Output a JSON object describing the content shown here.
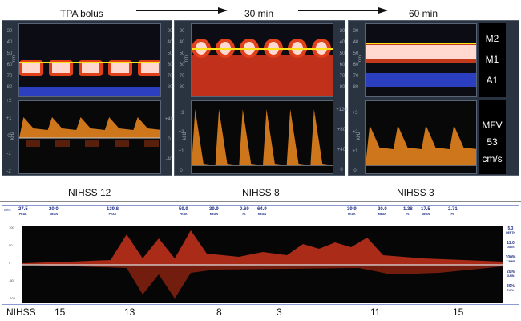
{
  "timeline": {
    "start": "TPA bolus",
    "t1": "30 min",
    "t2": "60 min"
  },
  "panels": [
    {
      "mm_ticks": [
        "30",
        "40",
        "50",
        "60",
        "70",
        "80"
      ],
      "depth_unit": "mm",
      "freq_unit": "kHz",
      "khz_ticks": [
        "+2",
        "+1",
        "0",
        "-1",
        "-2"
      ],
      "vel_ticks": [
        "+40",
        "0",
        "-40"
      ],
      "nihss": "NIHSS 12"
    },
    {
      "mm_ticks": [
        "30",
        "40",
        "50",
        "60",
        "70",
        "80"
      ],
      "depth_unit": "mm",
      "freq_unit": "kHz",
      "khz_ticks": [
        "+3",
        "+2",
        "+1",
        "0"
      ],
      "vel_ticks": [
        "+120",
        "+80",
        "+40",
        "0"
      ],
      "nihss": "NIHSS 8"
    },
    {
      "mm_ticks": [
        "30",
        "40",
        "50",
        "60",
        "70",
        "80"
      ],
      "depth_unit": "mm",
      "freq_unit": "kHz",
      "khz_ticks": [
        "+3",
        "+2",
        "+1",
        "0"
      ],
      "vel_ticks": [
        "+120",
        "+80",
        "+40",
        "0"
      ],
      "nihss": "NIHSS 3",
      "vessels": [
        "M2",
        "M1",
        "A1"
      ],
      "mfv": {
        "label": "MFV",
        "value": "53",
        "unit": "cm/s"
      }
    }
  ],
  "strip": {
    "unit": "cm/s",
    "header": [
      {
        "v": "27.5",
        "k": "PEAK"
      },
      {
        "v": "20.0",
        "k": "MEAN"
      },
      {
        "v": "139.8",
        "k": "PEAK"
      },
      {
        "v": "59.9",
        "k": "PEAK"
      },
      {
        "v": "39.9",
        "k": "MEAN"
      },
      {
        "v": "0.69",
        "k": "P.I."
      },
      {
        "v": "64.9",
        "k": "MEAN"
      },
      {
        "v": "39.9",
        "k": "PEAK"
      },
      {
        "v": "20.0",
        "k": "MEAN"
      },
      {
        "v": "1.38",
        "k": "P.I."
      },
      {
        "v": "17.5",
        "k": "MEAN"
      },
      {
        "v": "2.71",
        "k": "P.I."
      }
    ],
    "right": [
      {
        "v": "5.3",
        "k": "DEPTH"
      },
      {
        "v": "11.0",
        "k": "GATE"
      },
      {
        "v": "100%",
        "k": "T PWR"
      },
      {
        "v": "20%",
        "k": "GAIN"
      },
      {
        "v": "30%",
        "k": "SVOL"
      }
    ],
    "y_ticks": [
      "100",
      "50",
      "0",
      "-50",
      "-100"
    ]
  },
  "nihss_row": {
    "label": "NIHSS",
    "scores": [
      "15",
      "13",
      "8",
      "3",
      "11",
      "15"
    ]
  },
  "colors": {
    "panel": "#2a3340",
    "flow_red": "#e0401a",
    "flow_white": "#ffd9d0",
    "flow_blue": "#2b3fc0",
    "gate": "#ffe21a",
    "spectrum": "#f08a20"
  }
}
